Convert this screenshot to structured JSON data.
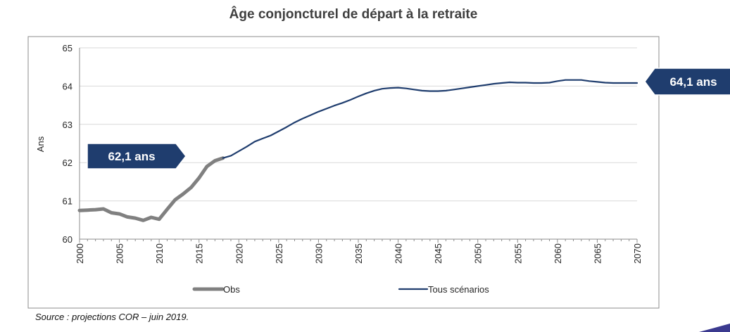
{
  "chart_data": {
    "type": "line",
    "title": "Âge conjoncturel de départ à la retraite",
    "ylabel": "Ans",
    "xlim": [
      2000,
      2070
    ],
    "ylim": [
      60,
      65
    ],
    "yticks": [
      60,
      61,
      62,
      63,
      64,
      65
    ],
    "xticks": [
      2000,
      2005,
      2010,
      2015,
      2020,
      2025,
      2030,
      2035,
      2040,
      2045,
      2050,
      2055,
      2060,
      2065,
      2070
    ],
    "grid": "horizontal",
    "legend_position": "bottom",
    "series": [
      {
        "name": "Obs",
        "color": "#808080",
        "x": [
          2000,
          2001,
          2002,
          2003,
          2004,
          2005,
          2006,
          2007,
          2008,
          2009,
          2010,
          2011,
          2012,
          2013,
          2014,
          2015,
          2016,
          2017,
          2018
        ],
        "y": [
          60.75,
          60.76,
          60.77,
          60.79,
          60.69,
          60.66,
          60.58,
          60.55,
          60.49,
          60.57,
          60.52,
          60.78,
          61.03,
          61.18,
          61.35,
          61.6,
          61.9,
          62.05,
          62.12
        ]
      },
      {
        "name": "Tous scénarios",
        "color": "#1f3d6e",
        "x": [
          2018,
          2019,
          2020,
          2021,
          2022,
          2023,
          2024,
          2025,
          2026,
          2027,
          2028,
          2029,
          2030,
          2031,
          2032,
          2033,
          2034,
          2035,
          2036,
          2037,
          2038,
          2039,
          2040,
          2041,
          2042,
          2043,
          2044,
          2045,
          2046,
          2047,
          2048,
          2049,
          2050,
          2051,
          2052,
          2053,
          2054,
          2055,
          2056,
          2057,
          2058,
          2059,
          2060,
          2061,
          2062,
          2063,
          2064,
          2065,
          2066,
          2067,
          2068,
          2069,
          2070
        ],
        "y": [
          62.12,
          62.18,
          62.3,
          62.42,
          62.55,
          62.63,
          62.71,
          62.82,
          62.93,
          63.05,
          63.15,
          63.24,
          63.33,
          63.41,
          63.49,
          63.56,
          63.64,
          63.73,
          63.81,
          63.88,
          63.93,
          63.95,
          63.96,
          63.94,
          63.91,
          63.88,
          63.87,
          63.87,
          63.88,
          63.91,
          63.94,
          63.97,
          64.0,
          64.03,
          64.06,
          64.08,
          64.1,
          64.09,
          64.09,
          64.08,
          64.08,
          64.09,
          64.13,
          64.16,
          64.16,
          64.16,
          64.13,
          64.11,
          64.09,
          64.08,
          64.08,
          64.08,
          64.08
        ]
      }
    ],
    "annotations": [
      {
        "text": "62,1 ans",
        "anchor": "left of 2018 point",
        "direction": "right"
      },
      {
        "text": "64,1 ans",
        "anchor": "right of 2070 point",
        "direction": "left"
      }
    ]
  },
  "source_note": "Source : projections COR – juin 2019."
}
